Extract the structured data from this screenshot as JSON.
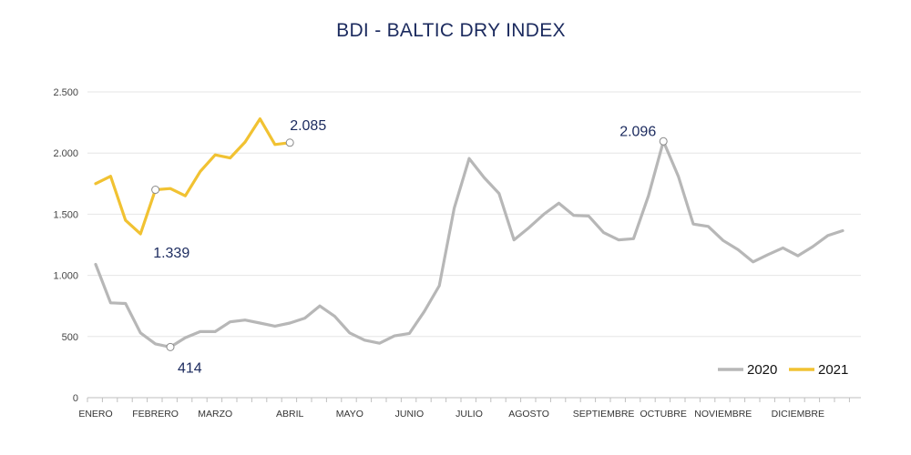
{
  "chart_data": {
    "type": "line",
    "title": "BDI - BALTIC DRY INDEX",
    "xlabel": "",
    "ylabel": "",
    "ylim": [
      0,
      2500
    ],
    "yticks": [
      0,
      500,
      1000,
      1500,
      2000,
      2500
    ],
    "ytick_labels": [
      "0",
      "500",
      "1.000",
      "1.500",
      "2.000",
      "2.500"
    ],
    "grid": true,
    "legend_position": "bottom-right",
    "xcount": 52,
    "month_labels": [
      {
        "label": "ENERO",
        "x": 0
      },
      {
        "label": "FEBRERO",
        "x": 4
      },
      {
        "label": "MARZO",
        "x": 8
      },
      {
        "label": "ABRIL",
        "x": 13
      },
      {
        "label": "MAYO",
        "x": 17
      },
      {
        "label": "JUNIO",
        "x": 21
      },
      {
        "label": "JULIO",
        "x": 25
      },
      {
        "label": "AGOSTO",
        "x": 29
      },
      {
        "label": "SEPTIEMBRE",
        "x": 34
      },
      {
        "label": "OCTUBRE",
        "x": 38
      },
      {
        "label": "NOVIEMBRE",
        "x": 42
      },
      {
        "label": "DICIEMBRE",
        "x": 47
      }
    ],
    "series": [
      {
        "name": "2020",
        "color": "#b7b7b7",
        "values": [
          1090,
          775,
          770,
          530,
          440,
          414,
          490,
          540,
          540,
          620,
          635,
          610,
          585,
          610,
          650,
          750,
          665,
          530,
          470,
          445,
          505,
          525,
          705,
          915,
          1550,
          1955,
          1800,
          1670,
          1290,
          1390,
          1500,
          1590,
          1490,
          1485,
          1350,
          1290,
          1300,
          1650,
          2096,
          1810,
          1420,
          1400,
          1285,
          1210,
          1110,
          1170,
          1225,
          1160,
          1235,
          1325,
          1365
        ]
      },
      {
        "name": "2021",
        "color": "#f1c232",
        "values": [
          1750,
          1810,
          1450,
          1339,
          1700,
          1710,
          1650,
          1850,
          1985,
          1960,
          2090,
          2280,
          2070,
          2085
        ]
      }
    ],
    "annotations": [
      {
        "text": "2.085",
        "series": 1,
        "index": 13,
        "dx": 0,
        "dy": -14
      },
      {
        "text": "1.339",
        "series": 1,
        "index": 3,
        "dx": 14,
        "dy": 26
      },
      {
        "text": "414",
        "series": 0,
        "index": 5,
        "dx": 8,
        "dy": 28
      },
      {
        "text": "2.096",
        "series": 0,
        "index": 38,
        "dx": -48,
        "dy": -6
      }
    ],
    "markers": [
      {
        "series": 1,
        "index": 13
      },
      {
        "series": 1,
        "index": 4
      },
      {
        "series": 0,
        "index": 5
      },
      {
        "series": 0,
        "index": 38
      }
    ]
  }
}
